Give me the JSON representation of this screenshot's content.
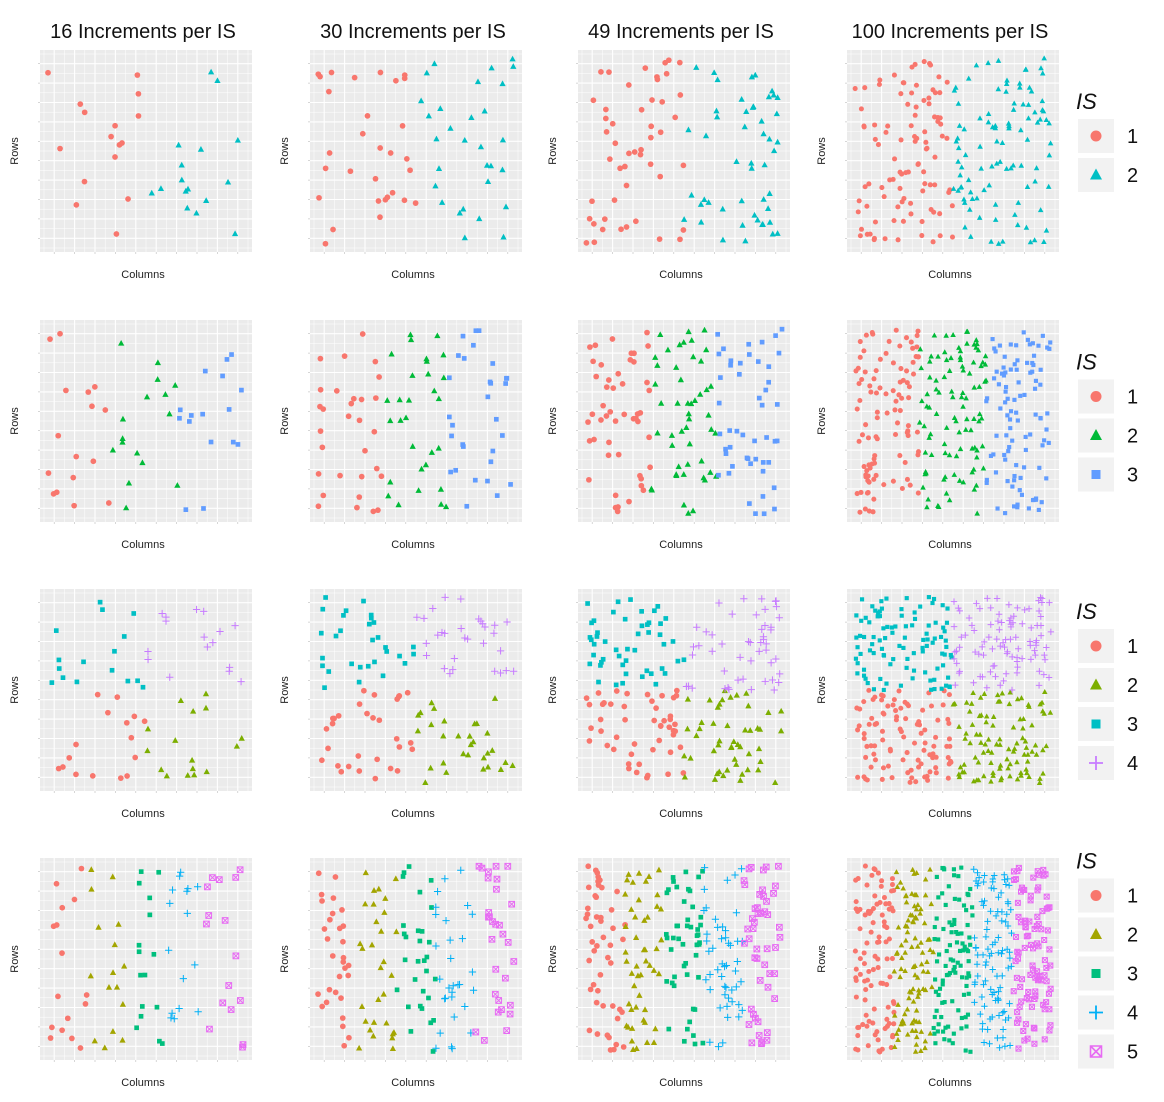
{
  "chart_data": [
    {
      "type": "scatter",
      "description_rows": "grid of scatter panels",
      "col_titles": [
        "16 Increments per IS",
        "30 Increments per IS",
        "49 Increments per IS",
        "100 Increments per IS"
      ],
      "xlabel": "Columns",
      "ylabel": "Rows",
      "xlim": [
        0,
        1
      ],
      "ylim": [
        0,
        1
      ],
      "grid": true,
      "increments": [
        16,
        30,
        49,
        100
      ],
      "rows": [
        {
          "legend_title": "IS",
          "groups": [
            {
              "name": "1",
              "color": "#F8766D",
              "shape": "circle",
              "region": {
                "x": [
                  0,
                  0.5
                ],
                "y": [
                  0,
                  1
                ]
              }
            },
            {
              "name": "2",
              "color": "#00BFC4",
              "shape": "triangle",
              "region": {
                "x": [
                  0.5,
                  1
                ],
                "y": [
                  0,
                  1
                ]
              }
            }
          ]
        },
        {
          "legend_title": "IS",
          "groups": [
            {
              "name": "1",
              "color": "#F8766D",
              "shape": "circle",
              "region": {
                "x": [
                  0,
                  0.33
                ],
                "y": [
                  0,
                  1
                ]
              }
            },
            {
              "name": "2",
              "color": "#00BA38",
              "shape": "triangle",
              "region": {
                "x": [
                  0.33,
                  0.67
                ],
                "y": [
                  0,
                  1
                ]
              }
            },
            {
              "name": "3",
              "color": "#619CFF",
              "shape": "square",
              "region": {
                "x": [
                  0.67,
                  1
                ],
                "y": [
                  0,
                  1
                ]
              }
            }
          ]
        },
        {
          "legend_title": "IS",
          "groups": [
            {
              "name": "1",
              "color": "#F8766D",
              "shape": "circle",
              "region": {
                "x": [
                  0,
                  0.5
                ],
                "y": [
                  0,
                  0.5
                ]
              }
            },
            {
              "name": "2",
              "color": "#7CAE00",
              "shape": "triangle",
              "region": {
                "x": [
                  0.5,
                  1
                ],
                "y": [
                  0,
                  0.5
                ]
              }
            },
            {
              "name": "3",
              "color": "#00BFC4",
              "shape": "square",
              "region": {
                "x": [
                  0,
                  0.5
                ],
                "y": [
                  0.5,
                  1
                ]
              }
            },
            {
              "name": "4",
              "color": "#C77CFF",
              "shape": "plus",
              "region": {
                "x": [
                  0.5,
                  1
                ],
                "y": [
                  0.5,
                  1
                ]
              }
            }
          ]
        },
        {
          "legend_title": "IS",
          "groups": [
            {
              "name": "1",
              "color": "#F8766D",
              "shape": "circle",
              "region": {
                "x": [
                  0,
                  0.2
                ],
                "y": [
                  0,
                  1
                ]
              }
            },
            {
              "name": "2",
              "color": "#A3A500",
              "shape": "triangle",
              "region": {
                "x": [
                  0.2,
                  0.4
                ],
                "y": [
                  0,
                  1
                ]
              }
            },
            {
              "name": "3",
              "color": "#00BF7D",
              "shape": "square",
              "region": {
                "x": [
                  0.4,
                  0.6
                ],
                "y": [
                  0,
                  1
                ]
              }
            },
            {
              "name": "4",
              "color": "#00B0F6",
              "shape": "plus",
              "region": {
                "x": [
                  0.6,
                  0.8
                ],
                "y": [
                  0,
                  1
                ]
              }
            },
            {
              "name": "5",
              "color": "#E76BF3",
              "shape": "boxx",
              "region": {
                "x": [
                  0.8,
                  1
                ],
                "y": [
                  0,
                  1
                ]
              }
            }
          ]
        }
      ],
      "seed": 7
    }
  ]
}
